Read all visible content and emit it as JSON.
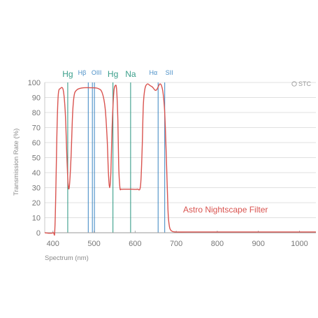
{
  "chart_data": {
    "type": "line",
    "title": "",
    "xlabel": "Spectrum (nm)",
    "ylabel": "Transmission Rate (%)",
    "xlim": [
      380,
      1040
    ],
    "ylim": [
      0,
      100
    ],
    "x_ticks": [
      400,
      500,
      600,
      700,
      800,
      900,
      1000
    ],
    "y_ticks": [
      0,
      10,
      20,
      30,
      40,
      50,
      60,
      70,
      80,
      90,
      100
    ],
    "grid": "horizontal",
    "brand": "STC",
    "series": [
      {
        "name": "Astro Nightscape Filter",
        "color": "#d9534f",
        "x": [
          380,
          400,
          405,
          410,
          413,
          418,
          425,
          430,
          434,
          437,
          440,
          444,
          448,
          452,
          458,
          465,
          475,
          490,
          510,
          520,
          527,
          532,
          535,
          538,
          541,
          544,
          548,
          552,
          555,
          558,
          560,
          563,
          566,
          572,
          590,
          605,
          613,
          617,
          620,
          624,
          630,
          636,
          642,
          648,
          652,
          656,
          660,
          664,
          668,
          672,
          676,
          680,
          683,
          686,
          690,
          700,
          750,
          850,
          950,
          1040
        ],
        "y": [
          0,
          0,
          5,
          70,
          92,
          96,
          95,
          80,
          50,
          32,
          31,
          50,
          80,
          92,
          95,
          96,
          96.5,
          96.5,
          96,
          93,
          83,
          62,
          40,
          30,
          40,
          70,
          93,
          98,
          95,
          75,
          45,
          30,
          29,
          29,
          29,
          29,
          31,
          55,
          85,
          96,
          99,
          98,
          97,
          95,
          95,
          97,
          99,
          98,
          93,
          80,
          50,
          15,
          5,
          2,
          1,
          0.5,
          0.5,
          0.5,
          0.5,
          0.5
        ]
      }
    ],
    "emission_lines": [
      {
        "label": "Hg",
        "x": 436,
        "color": "#3a9e8a"
      },
      {
        "label": "Hβ",
        "x": 486,
        "color": "#4a8fc7"
      },
      {
        "label": "OIII",
        "x": 496,
        "color": "#4a8fc7"
      },
      {
        "label": "",
        "x": 501,
        "color": "#4a8fc7"
      },
      {
        "label": "Hg",
        "x": 546,
        "color": "#3a9e8a"
      },
      {
        "label": "Na",
        "x": 589,
        "color": "#3a9e8a"
      },
      {
        "label": "Hα",
        "x": 656,
        "color": "#4a8fc7"
      },
      {
        "label": "SII",
        "x": 672,
        "color": "#4a8fc7"
      }
    ]
  }
}
